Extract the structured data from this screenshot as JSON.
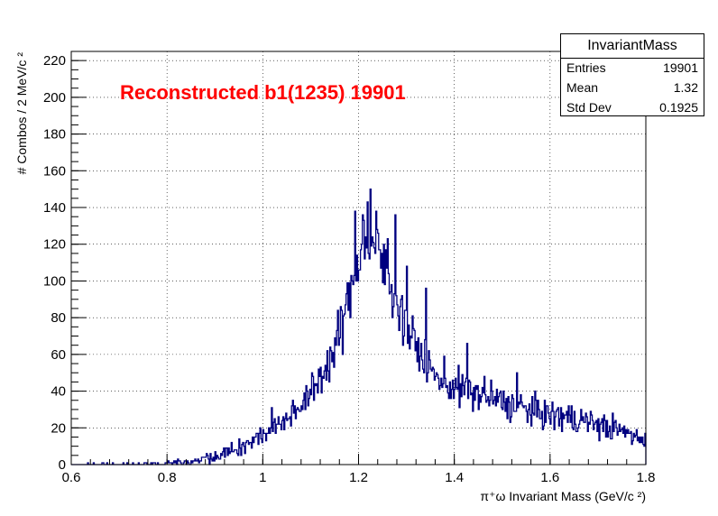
{
  "chart_data": {
    "type": "histogram",
    "title": "Reconstructed b1(1235) 19901",
    "title_color": "#ff0000",
    "line_color": "#000080",
    "xlabel": "π⁺ω Invariant Mass (GeV/c ²)",
    "ylabel": "# Combos / 2 MeV/c ²",
    "xlim": [
      0.6,
      1.8
    ],
    "ylim": [
      0,
      225
    ],
    "bin_width": 0.002,
    "grid": true,
    "x_ticks": [
      "0.6",
      "0.8",
      "1",
      "1.2",
      "1.4",
      "1.6",
      "1.8"
    ],
    "x_tick_values": [
      0.6,
      0.8,
      1.0,
      1.2,
      1.4,
      1.6,
      1.8
    ],
    "y_ticks": [
      "0",
      "20",
      "40",
      "60",
      "80",
      "100",
      "120",
      "140",
      "160",
      "180",
      "200",
      "220"
    ],
    "y_tick_values": [
      0,
      20,
      40,
      60,
      80,
      100,
      120,
      140,
      160,
      180,
      200,
      220
    ],
    "envelope": [
      [
        0.6,
        0
      ],
      [
        0.8,
        1
      ],
      [
        0.85,
        2
      ],
      [
        0.9,
        5
      ],
      [
        0.95,
        9
      ],
      [
        1.0,
        16
      ],
      [
        1.05,
        26
      ],
      [
        1.1,
        38
      ],
      [
        1.15,
        62
      ],
      [
        1.18,
        90
      ],
      [
        1.2,
        113
      ],
      [
        1.22,
        122
      ],
      [
        1.24,
        116
      ],
      [
        1.26,
        104
      ],
      [
        1.28,
        90
      ],
      [
        1.3,
        75
      ],
      [
        1.33,
        60
      ],
      [
        1.36,
        48
      ],
      [
        1.4,
        42
      ],
      [
        1.45,
        38
      ],
      [
        1.5,
        34
      ],
      [
        1.55,
        30
      ],
      [
        1.6,
        27
      ],
      [
        1.65,
        25
      ],
      [
        1.7,
        22
      ],
      [
        1.75,
        18
      ],
      [
        1.8,
        14
      ]
    ],
    "peaks": [
      [
        1.224,
        150
      ],
      [
        1.218,
        143
      ],
      [
        1.192,
        138
      ],
      [
        1.236,
        138
      ],
      [
        1.208,
        136
      ],
      [
        1.276,
        136
      ],
      [
        1.26,
        123
      ],
      [
        1.3,
        108
      ],
      [
        1.34,
        96
      ],
      [
        1.428,
        66
      ],
      [
        1.53,
        50
      ],
      [
        1.462,
        48
      ]
    ]
  },
  "stats_box": {
    "title": "InvariantMass",
    "rows": [
      {
        "label": "Entries",
        "value": "19901"
      },
      {
        "label": "Mean",
        "value": "1.32"
      },
      {
        "label": "Std Dev",
        "value": "0.1925"
      }
    ]
  }
}
